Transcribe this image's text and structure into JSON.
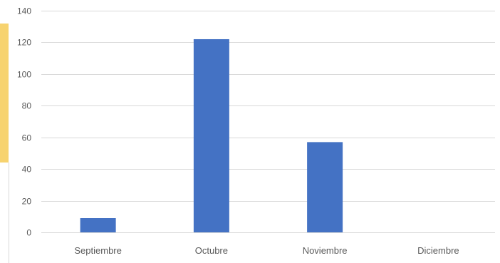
{
  "chart_data": {
    "type": "bar",
    "categories": [
      "Septiembre",
      "Octubre",
      "Noviembre",
      "Diciembre"
    ],
    "values": [
      9,
      122,
      57,
      0
    ],
    "ylim": [
      0,
      140
    ],
    "yticks": [
      0,
      20,
      40,
      60,
      80,
      100,
      120,
      140
    ],
    "title": "",
    "xlabel": "",
    "ylabel": "",
    "grid": true,
    "bar_color": "#4472c4",
    "grid_color": "#d9d9d9",
    "label_color": "#595959"
  },
  "decor": {
    "highlight_color": "#f7d36f"
  }
}
